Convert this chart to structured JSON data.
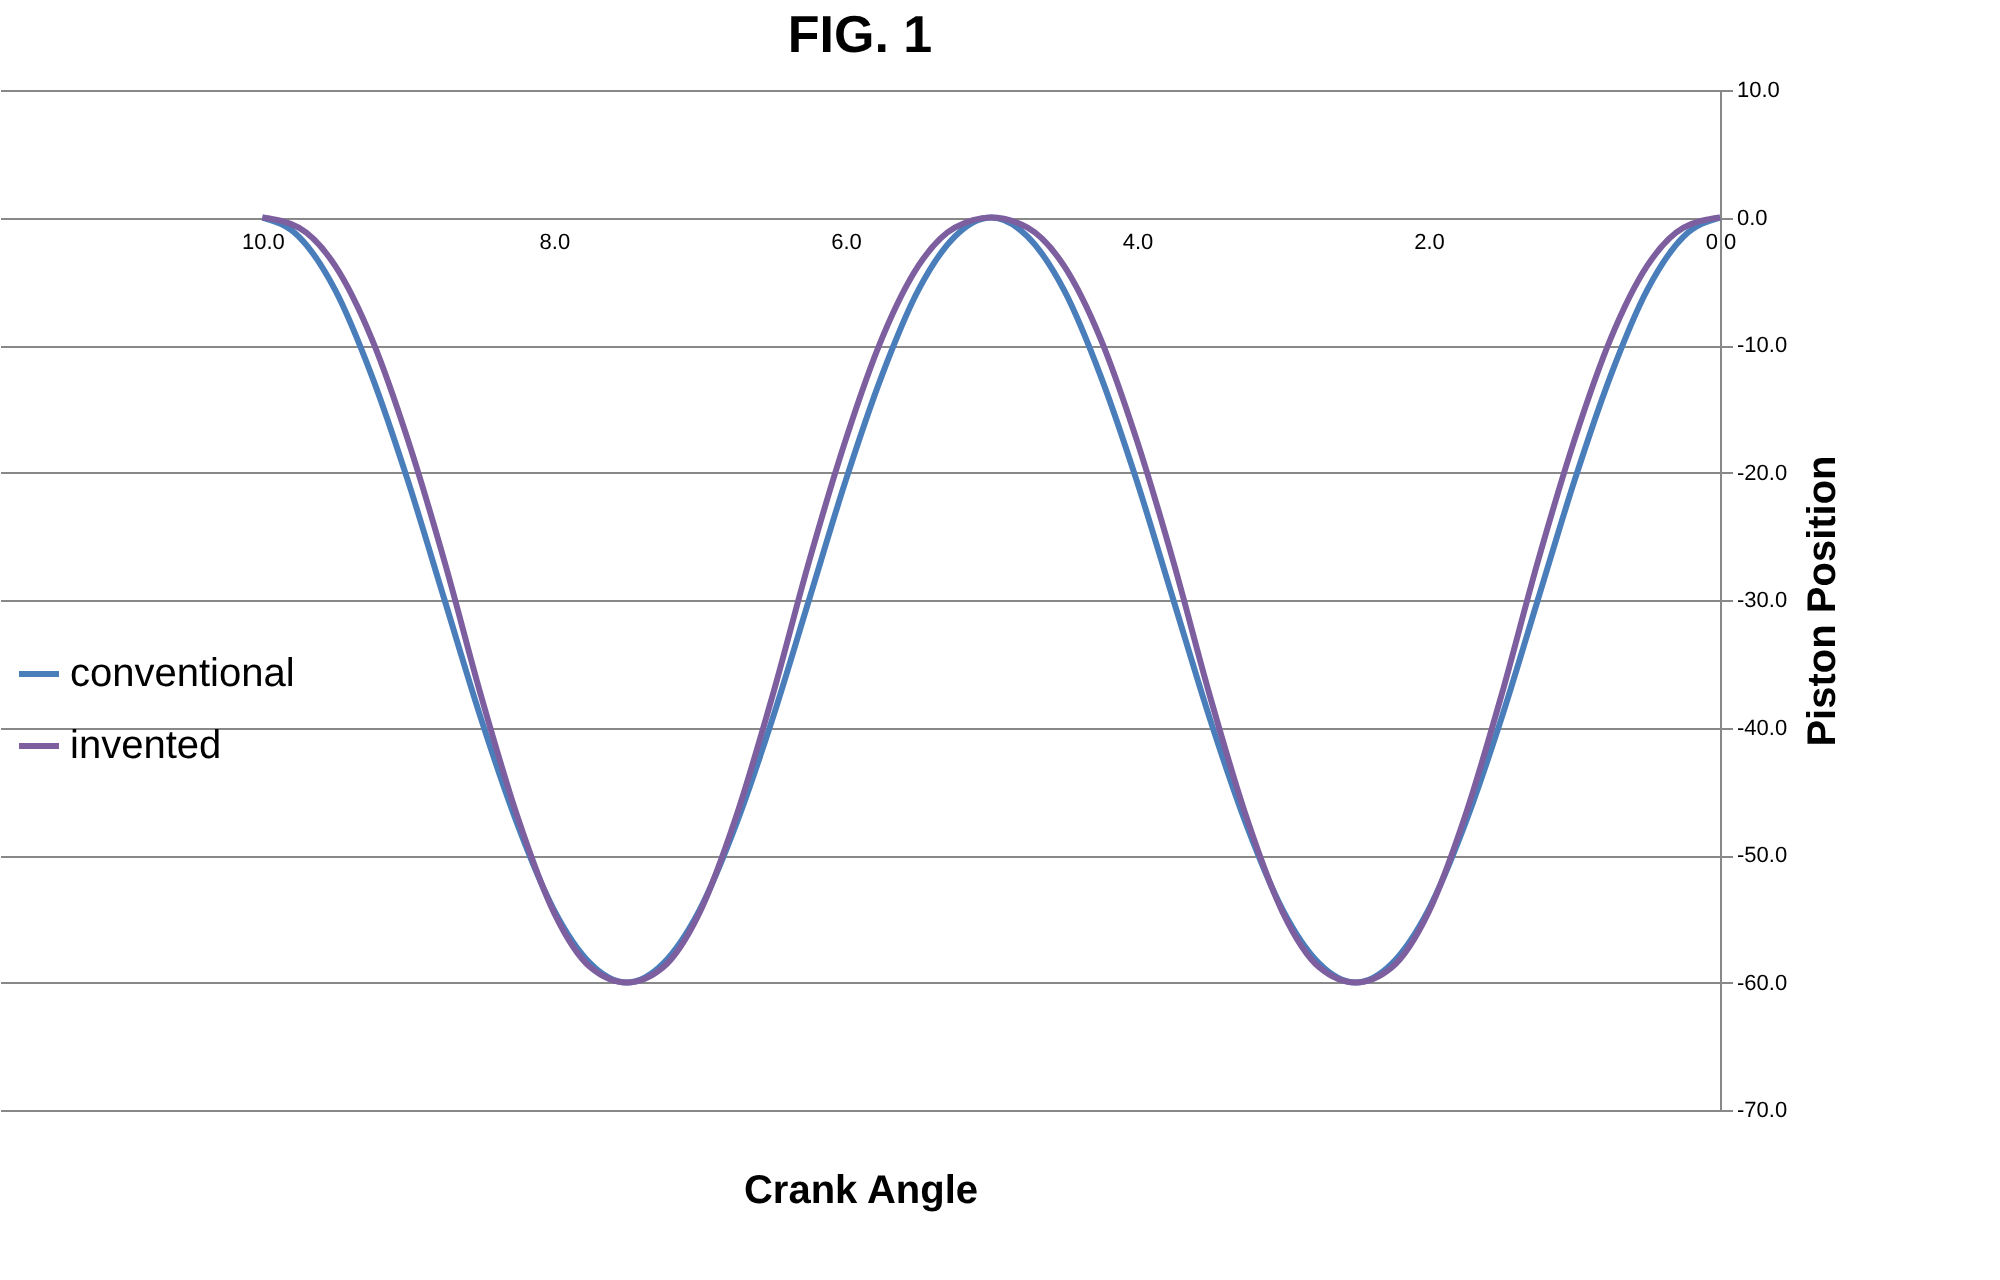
{
  "chart_data": {
    "type": "line",
    "title": "FIG. 1",
    "xlabel": "Crank Angle",
    "ylabel": "Piston Position",
    "x": [
      0,
      0.25,
      0.5,
      0.75,
      1,
      1.25,
      1.5,
      1.75,
      2,
      2.25,
      2.5,
      2.75,
      3,
      3.25,
      3.5,
      3.75,
      4,
      4.25,
      4.5,
      4.75,
      5,
      5.25,
      5.5,
      5.75,
      6,
      6.25,
      6.5,
      6.75,
      7,
      7.25,
      7.5,
      7.75,
      8,
      8.25,
      8.5,
      8.75,
      9,
      9.25,
      9.5,
      9.75,
      10
    ],
    "series": [
      {
        "name": "conventional",
        "color": "#4a7ebb",
        "values": [
          0,
          -1.5,
          -5.7,
          -12.4,
          -20.7,
          -30,
          -39.3,
          -47.6,
          -54.3,
          -58.5,
          -60,
          -58.5,
          -54.3,
          -47.6,
          -39.3,
          -30,
          -20.7,
          -12.4,
          -5.7,
          -1.5,
          0,
          -1.5,
          -5.7,
          -12.4,
          -20.7,
          -30,
          -39.3,
          -47.6,
          -54.3,
          -58.5,
          -60,
          -58.5,
          -54.3,
          -47.6,
          -39.3,
          -30,
          -20.7,
          -12.4,
          -5.7,
          -1.5,
          0
        ]
      },
      {
        "name": "invented",
        "color": "#7d5fa0",
        "values": [
          0,
          -0.8,
          -3.8,
          -9.5,
          -17.5,
          -27,
          -37.5,
          -47,
          -54.5,
          -58.8,
          -60,
          -58.8,
          -54.5,
          -47,
          -37.5,
          -27,
          -17.5,
          -9.5,
          -3.8,
          -0.8,
          0,
          -0.8,
          -3.8,
          -9.5,
          -17.5,
          -27,
          -37.5,
          -47,
          -54.5,
          -58.8,
          -60,
          -58.8,
          -54.5,
          -47,
          -37.5,
          -27,
          -17.5,
          -9.5,
          -3.8,
          -0.8,
          0
        ]
      }
    ],
    "xlim": [
      11.8,
      0
    ],
    "xticks": [
      {
        "value": 10,
        "label": "10.0"
      },
      {
        "value": 8,
        "label": "8.0"
      },
      {
        "value": 6,
        "label": "6.0"
      },
      {
        "value": 4,
        "label": "4.0"
      },
      {
        "value": 2,
        "label": "2.0"
      },
      {
        "value": 0,
        "label": "0.0"
      }
    ],
    "ylim": [
      -70,
      10
    ],
    "yticks": [
      {
        "value": 10,
        "label": "10.0"
      },
      {
        "value": 0,
        "label": "0.0"
      },
      {
        "value": -10,
        "label": "-10.0"
      },
      {
        "value": -20,
        "label": "-20.0"
      },
      {
        "value": -30,
        "label": "-30.0"
      },
      {
        "value": -40,
        "label": "-40.0"
      },
      {
        "value": -50,
        "label": "-50.0"
      },
      {
        "value": -60,
        "label": "-60.0"
      },
      {
        "value": -70,
        "label": "-70.0"
      }
    ],
    "grid": "y",
    "legend": "left",
    "marker": "none",
    "line_style": "solid"
  }
}
